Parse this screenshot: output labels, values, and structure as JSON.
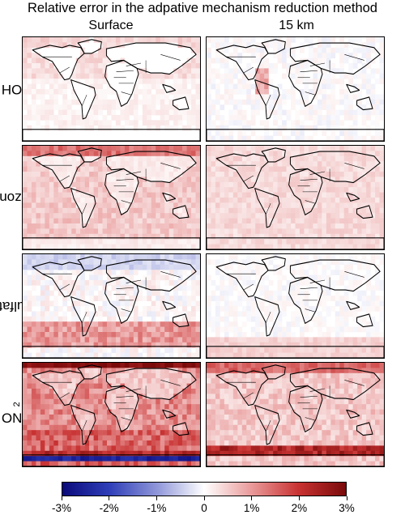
{
  "chart_data": {
    "type": "heatmap",
    "title": "Relative error in the adpative mechanism reduction method",
    "columns": [
      "Surface",
      "15 km"
    ],
    "rows": [
      {
        "label": "OH",
        "sub": ""
      },
      {
        "label": "Ozone",
        "sub": ""
      },
      {
        "label": "Sulfate",
        "sub": ""
      },
      {
        "label": "NO",
        "sub": "2"
      }
    ],
    "colorbar": {
      "min": -3,
      "max": 3,
      "ticks": [
        "-3%",
        "-2%",
        "-1%",
        "0",
        "1%",
        "2%",
        "3%"
      ],
      "tick_values": [
        -3,
        -2,
        -1,
        0,
        1,
        2,
        3
      ],
      "colors": [
        "#0a0a7a",
        "#2f3fb8",
        "#8f96d8",
        "#ffffff",
        "#e99a9a",
        "#c83232",
        "#7a0a0a"
      ]
    },
    "panels": [
      {
        "row": "OH",
        "column": "Surface",
        "pattern": "oh_surface"
      },
      {
        "row": "OH",
        "column": "15 km",
        "pattern": "oh_15km"
      },
      {
        "row": "Ozone",
        "column": "Surface",
        "pattern": "ozone_surface"
      },
      {
        "row": "Ozone",
        "column": "15 km",
        "pattern": "ozone_15km"
      },
      {
        "row": "Sulfate",
        "column": "Surface",
        "pattern": "sulfate_surface"
      },
      {
        "row": "Sulfate",
        "column": "15 km",
        "pattern": "sulfate_15km"
      },
      {
        "row": "NO2",
        "column": "Surface",
        "pattern": "no2_surface"
      },
      {
        "row": "NO2",
        "column": "15 km",
        "pattern": "no2_15km"
      }
    ]
  }
}
